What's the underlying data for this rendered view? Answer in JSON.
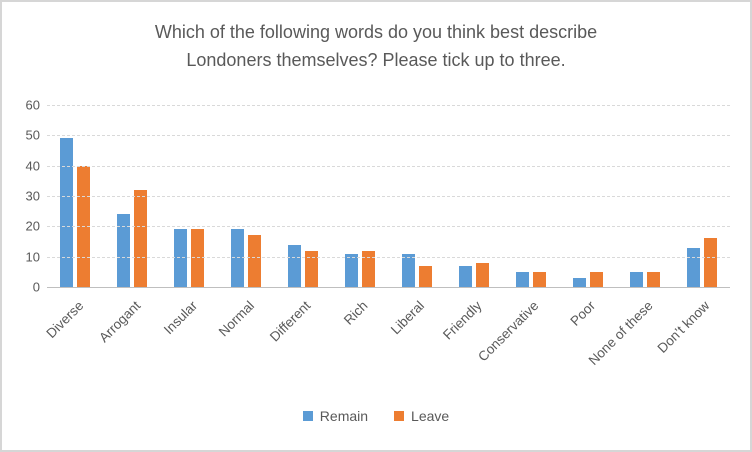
{
  "frame": {
    "background": "#ffffff",
    "border_color": "#d6d6d6"
  },
  "styles": {
    "text_color": "#595959",
    "gridline_color": "#d9d9d9",
    "axis_color": "#bfbfbf"
  },
  "chart_data": {
    "type": "bar",
    "title": "Which of the following words do you think best describe Londoners themselves? Please tick up to three.",
    "title_lines": [
      "Which of the following words do you think best describe",
      "Londoners themselves? Please tick up to three."
    ],
    "categories": [
      "Diverse",
      "Arrogant",
      "Insular",
      "Normal",
      "Different",
      "Rich",
      "Liberal",
      "Friendly",
      "Conservative",
      "Poor",
      "None of these",
      "Don’t know"
    ],
    "series": [
      {
        "name": "Remain",
        "color": "#5b9bd5",
        "values": [
          49,
          24,
          19,
          19,
          14,
          11,
          11,
          7,
          5,
          3,
          5,
          13
        ]
      },
      {
        "name": "Leave",
        "color": "#ed7d31",
        "values": [
          40,
          32,
          19,
          17,
          12,
          12,
          7,
          8,
          5,
          5,
          5,
          16
        ]
      }
    ],
    "xlabel": "",
    "ylabel": "",
    "ylim": [
      0,
      60
    ],
    "y_ticks": [
      0,
      10,
      20,
      30,
      40,
      50,
      60
    ],
    "grid": true,
    "legend_position": "bottom"
  }
}
